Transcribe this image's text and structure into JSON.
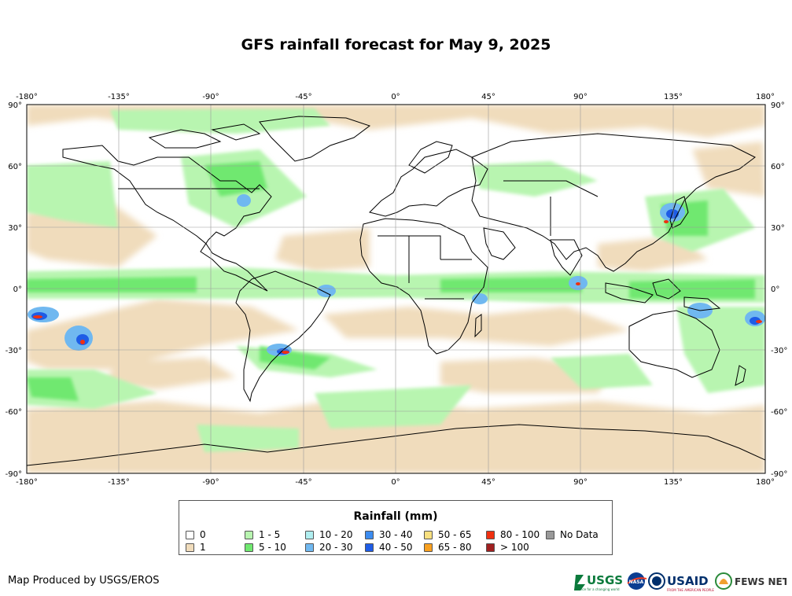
{
  "title": "GFS rainfall forecast for May 9, 2025",
  "axes": {
    "lon_ticks": [
      "-180°",
      "-135°",
      "-90°",
      "-45°",
      "0°",
      "45°",
      "90°",
      "135°",
      "180°"
    ],
    "lat_ticks": [
      "90°",
      "60°",
      "30°",
      "0°",
      "-30°",
      "-60°",
      "-90°"
    ]
  },
  "legend": {
    "title": "Rainfall (mm)",
    "items": [
      {
        "label": "0",
        "color": "#ffffff"
      },
      {
        "label": "1",
        "color": "#f0dcbc"
      },
      {
        "label": "1 - 5",
        "color": "#b8f5b0"
      },
      {
        "label": "5 - 10",
        "color": "#70e870"
      },
      {
        "label": "10 - 20",
        "color": "#b0eef0"
      },
      {
        "label": "20 - 30",
        "color": "#70b8f0"
      },
      {
        "label": "30 - 40",
        "color": "#3c8cf0"
      },
      {
        "label": "40 - 50",
        "color": "#1e5ce6"
      },
      {
        "label": "50 - 65",
        "color": "#f8e080"
      },
      {
        "label": "65 - 80",
        "color": "#f8a020"
      },
      {
        "label": "80 - 100",
        "color": "#f03010"
      },
      {
        "label": "> 100",
        "color": "#a02020"
      },
      {
        "label": "No Data",
        "color": "#999999"
      }
    ]
  },
  "credit": "Map Produced by USGS/EROS",
  "logos": {
    "usgs": "USGS",
    "usgs_tagline": "science for a changing world",
    "nasa": "NASA",
    "usaid": "USAID",
    "usaid_tagline": "FROM THE AMERICAN PEOPLE",
    "fewsnet": "FEWS NET"
  }
}
